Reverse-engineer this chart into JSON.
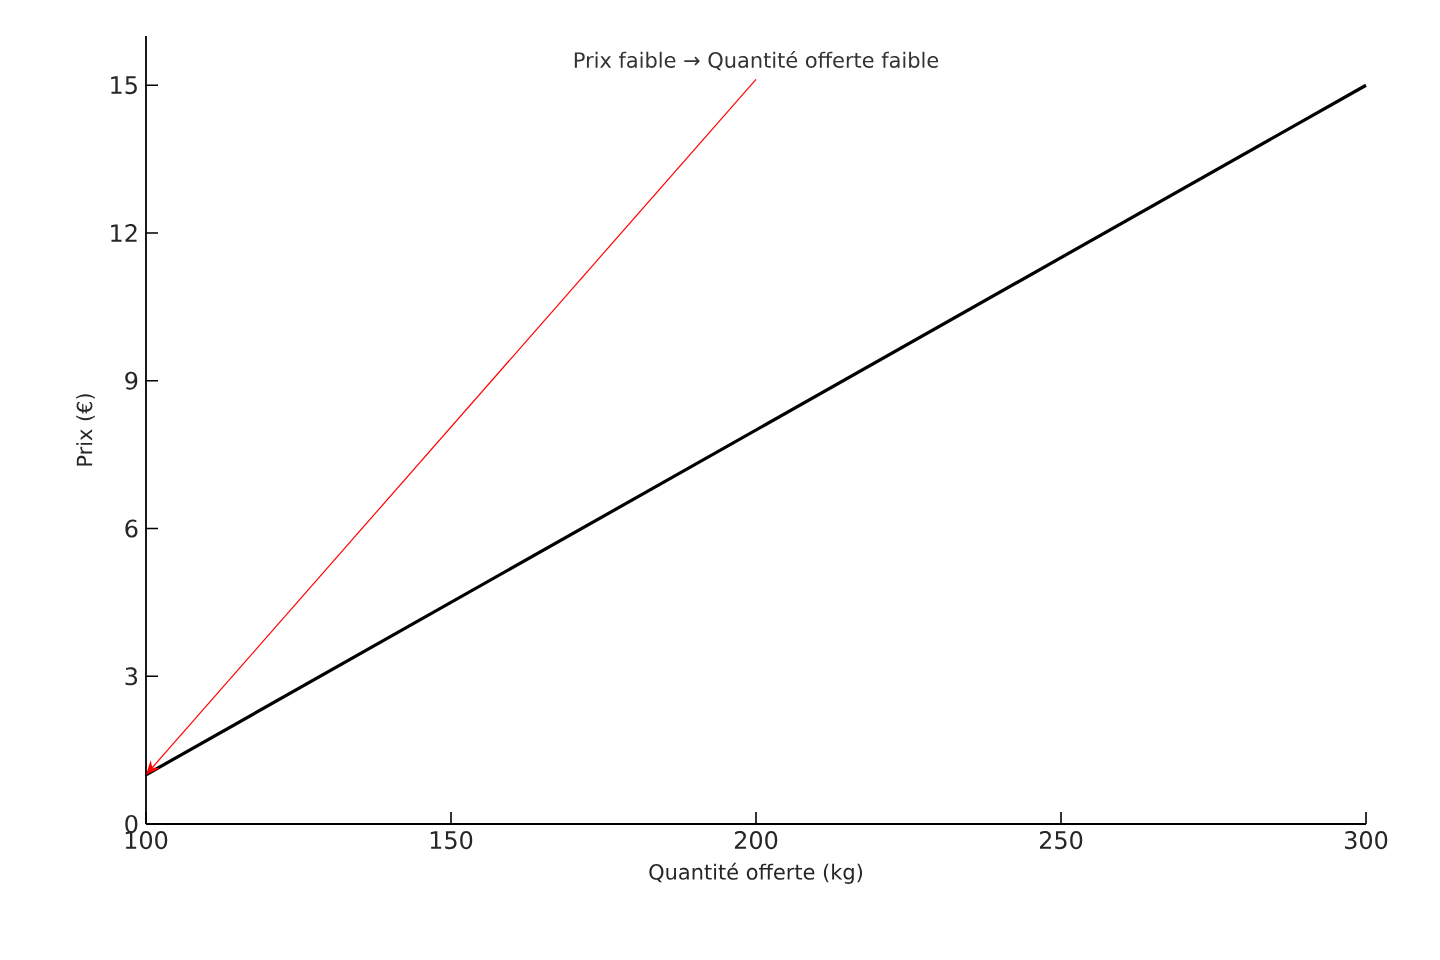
{
  "chart_data": {
    "type": "line",
    "xlabel": "Quantité offerte (kg)",
    "ylabel": "Prix (€)",
    "annotations": [
      {
        "text": "Prix faible → Quantité offerte faible",
        "x": 100,
        "y": 1
      }
    ],
    "x": [
      100,
      300
    ],
    "series": [
      {
        "color": "#000000",
        "values": [
          1,
          15
        ]
      }
    ],
    "xlim": [
      100,
      300
    ],
    "ylim": [
      0,
      16
    ],
    "xticks": [
      100,
      150,
      200,
      250,
      300
    ],
    "yticks": [
      0,
      3,
      6,
      9,
      12,
      15
    ],
    "marker": "none",
    "line_style": "solid"
  }
}
